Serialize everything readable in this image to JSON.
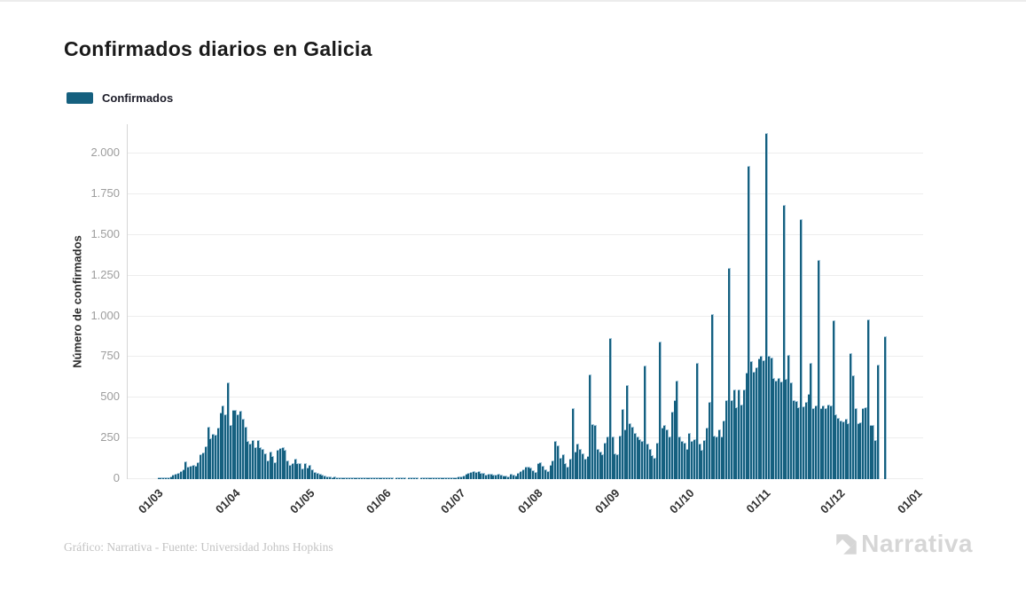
{
  "header": {
    "title": "Confirmados diarios en Galicia"
  },
  "legend": {
    "items": [
      {
        "label": "Confirmados",
        "color": "#15607f"
      }
    ]
  },
  "footer": {
    "credit": "Gráfico: Narrativa - Fuente: Universidad Johns Hopkins",
    "brand": "Narrativa"
  },
  "theme": {
    "bar_fill": "#15607f",
    "bar_edge": "#a2c5d9",
    "grid_color": "#ededed",
    "axis_line_color": "#d6d6d6",
    "ytick_color": "#9d9d9d",
    "xtick_color": "#2f2f2f",
    "title_color": "#1a1a1a",
    "credit_color": "#c3c3c3",
    "brand_color": "#d6d6d6",
    "background": "#ffffff"
  },
  "chart_data": {
    "type": "bar",
    "title": "Confirmados diarios en Galicia",
    "series_name": "Confirmados",
    "xlabel": "",
    "ylabel": "Número de confirmados",
    "ylim": [
      0,
      2000
    ],
    "ytick_step": 250,
    "ytick_labels": [
      "0",
      "250",
      "500",
      "750",
      "1.000",
      "1.250",
      "1.500",
      "1.750",
      "2.000"
    ],
    "grid": true,
    "legend_position": "top-left",
    "x_unit": "day",
    "x_start_label": "01/03",
    "x_tick_labels": [
      "01/03",
      "01/04",
      "01/05",
      "01/06",
      "01/07",
      "01/08",
      "01/09",
      "01/10",
      "01/11",
      "01/12",
      "01/01"
    ],
    "x_tick_day_offsets": [
      0,
      31,
      61,
      92,
      122,
      153,
      184,
      214,
      245,
      275,
      306
    ],
    "daily_values": [
      0,
      0,
      0,
      0,
      1,
      2,
      3,
      5,
      8,
      12,
      20,
      25,
      30,
      45,
      55,
      105,
      70,
      75,
      80,
      78,
      100,
      145,
      160,
      195,
      315,
      245,
      270,
      265,
      310,
      405,
      445,
      395,
      590,
      325,
      420,
      420,
      395,
      415,
      365,
      315,
      230,
      215,
      235,
      190,
      235,
      190,
      180,
      150,
      110,
      165,
      135,
      100,
      175,
      185,
      190,
      175,
      110,
      80,
      95,
      120,
      90,
      95,
      60,
      90,
      65,
      80,
      55,
      40,
      30,
      25,
      20,
      15,
      12,
      10,
      8,
      10,
      6,
      5,
      8,
      5,
      4,
      6,
      3,
      4,
      5,
      3,
      2,
      4,
      3,
      2,
      3,
      2,
      2,
      1,
      2,
      1,
      1,
      2,
      1,
      0,
      1,
      1,
      2,
      1,
      0,
      1,
      2,
      1,
      1,
      0,
      1,
      1,
      2,
      1,
      1,
      2,
      3,
      2,
      4,
      3,
      5,
      4,
      5,
      8,
      6,
      10,
      12,
      18,
      25,
      35,
      40,
      45,
      38,
      42,
      35,
      30,
      22,
      28,
      25,
      24,
      22,
      26,
      20,
      15,
      18,
      12,
      25,
      22,
      18,
      30,
      45,
      55,
      70,
      70,
      65,
      50,
      40,
      95,
      100,
      75,
      55,
      45,
      80,
      110,
      230,
      200,
      125,
      145,
      90,
      70,
      120,
      430,
      165,
      215,
      180,
      150,
      120,
      135,
      640,
      335,
      325,
      180,
      165,
      145,
      220,
      255,
      860,
      255,
      150,
      145,
      260,
      425,
      300,
      570,
      340,
      315,
      280,
      255,
      240,
      230,
      690,
      215,
      180,
      140,
      125,
      220,
      840,
      310,
      325,
      300,
      255,
      410,
      480,
      600,
      255,
      230,
      220,
      180,
      280,
      230,
      240,
      710,
      215,
      175,
      235,
      310,
      470,
      1010,
      260,
      255,
      300,
      255,
      355,
      480,
      1290,
      480,
      545,
      435,
      545,
      450,
      545,
      650,
      1920,
      720,
      655,
      680,
      735,
      750,
      725,
      2120,
      750,
      740,
      615,
      600,
      615,
      595,
      1680,
      610,
      760,
      590,
      480,
      475,
      435,
      1590,
      440,
      470,
      520,
      710,
      430,
      445,
      1340,
      430,
      445,
      430,
      450,
      445,
      970,
      390,
      370,
      355,
      350,
      365,
      340,
      770,
      630,
      430,
      340,
      345,
      430,
      435,
      975,
      325,
      325,
      235,
      695,
      0,
      0,
      870,
      0,
      0,
      0,
      0,
      0,
      0,
      0,
      0
    ]
  }
}
